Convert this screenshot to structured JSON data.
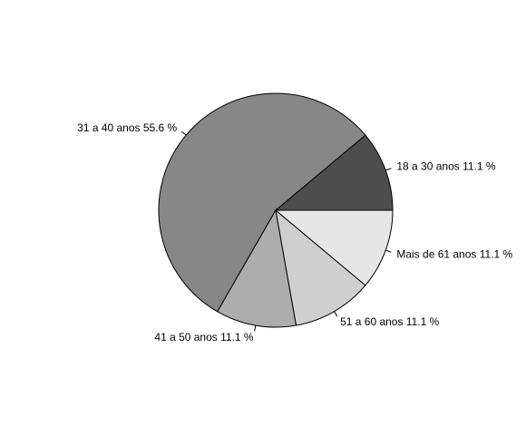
{
  "chart_data": {
    "type": "pie",
    "start_angle_deg": 0,
    "direction": "counterclockwise",
    "slices": [
      {
        "label": "18 a 30 anos 11.1 %",
        "value": 11.1,
        "color": "#4d4d4d"
      },
      {
        "label": "31 a 40 anos 55.6 %",
        "value": 55.6,
        "color": "#878787"
      },
      {
        "label": "41 a 50 anos 11.1 %",
        "value": 11.1,
        "color": "#adadad"
      },
      {
        "label": "51 a 60 anos 11.1 %",
        "value": 11.1,
        "color": "#cfcfcf"
      },
      {
        "label": "Mais de 61 anos 11.1 %",
        "value": 11.1,
        "color": "#e6e6e6"
      }
    ]
  }
}
